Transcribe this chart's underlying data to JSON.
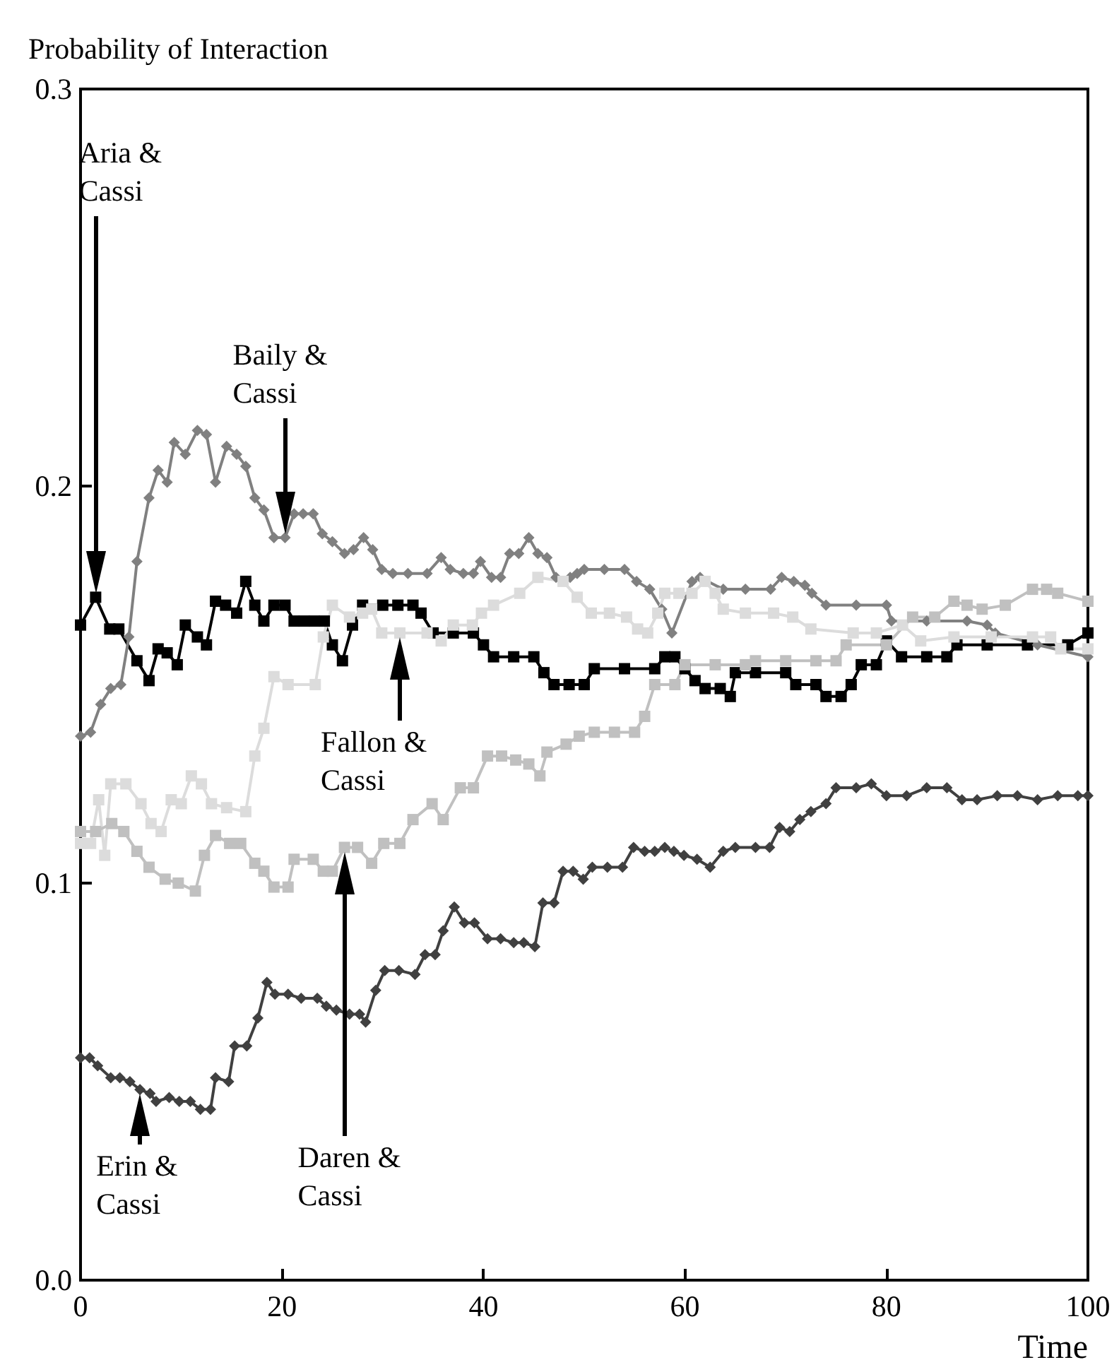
{
  "chart_data": {
    "type": "line",
    "xlabel": "Time",
    "ylabel": "Probability of Interaction",
    "xlim": [
      0,
      100
    ],
    "xticks": [
      0,
      20,
      40,
      60,
      80,
      100
    ],
    "ylim": [
      0,
      0.3
    ],
    "yticks": [
      {
        "value": 0,
        "label": "0.0"
      },
      0.1,
      0.2,
      0.3
    ],
    "grid": false,
    "series": [
      {
        "color": "#000000",
        "marker": "square",
        "x": [
          0,
          1.5,
          2.9,
          3.8,
          5.6,
          6.8,
          7.7,
          8.6,
          9.6,
          10.4,
          11.6,
          12.5,
          13.4,
          14.4,
          15.5,
          16.4,
          17.3,
          18.2,
          19.2,
          20.3,
          21.2,
          22.2,
          23.2,
          24.2,
          25,
          26,
          27,
          28,
          30,
          31.5,
          33,
          33.8,
          35,
          37,
          39,
          40,
          41,
          43,
          45,
          46,
          47,
          48.5,
          50,
          51,
          54,
          57,
          58,
          59,
          60,
          61,
          62,
          63.5,
          64.5,
          65,
          67,
          70,
          71,
          73,
          74,
          75.5,
          76.5,
          77.5,
          79,
          80,
          81.5,
          84,
          86,
          87,
          90,
          94,
          98,
          100
        ],
        "values": [
          0.165,
          0.172,
          0.164,
          0.164,
          0.156,
          0.151,
          0.159,
          0.158,
          0.155,
          0.165,
          0.162,
          0.16,
          0.171,
          0.17,
          0.168,
          0.176,
          0.17,
          0.166,
          0.17,
          0.17,
          0.166,
          0.166,
          0.166,
          0.166,
          0.16,
          0.156,
          0.165,
          0.17,
          0.17,
          0.17,
          0.17,
          0.168,
          0.163,
          0.163,
          0.163,
          0.16,
          0.157,
          0.157,
          0.157,
          0.153,
          0.15,
          0.15,
          0.15,
          0.154,
          0.154,
          0.154,
          0.157,
          0.157,
          0.154,
          0.151,
          0.149,
          0.149,
          0.147,
          0.153,
          0.153,
          0.153,
          0.15,
          0.15,
          0.147,
          0.147,
          0.15,
          0.155,
          0.155,
          0.161,
          0.157,
          0.157,
          0.157,
          0.16,
          0.16,
          0.16,
          0.16,
          0.163
        ]
      },
      {
        "color": "#808080",
        "marker": "diamond",
        "x": [
          0,
          1,
          2,
          3,
          4,
          4.8,
          5.6,
          6.8,
          7.7,
          8.6,
          9.3,
          10.4,
          11.6,
          12.5,
          13.4,
          14.5,
          15.5,
          16.4,
          17.3,
          18.2,
          19.2,
          20.3,
          21.2,
          22.1,
          23.1,
          24,
          25,
          26.2,
          27.1,
          28.1,
          29,
          29.9,
          31,
          32.5,
          34.4,
          35.8,
          36.7,
          38,
          39,
          39.7,
          40.8,
          41.7,
          42.6,
          43.5,
          44.5,
          45.4,
          46.3,
          47.2,
          48.6,
          49.3,
          50,
          52,
          54,
          55.2,
          56.5,
          57.7,
          58.7,
          60.7,
          61.5,
          63.8,
          66,
          68.5,
          69.6,
          70.8,
          71.9,
          72.6,
          74,
          77,
          80,
          80.5,
          84,
          88,
          90,
          90.8,
          95,
          100
        ],
        "values": [
          0.137,
          0.138,
          0.145,
          0.149,
          0.15,
          0.162,
          0.181,
          0.197,
          0.204,
          0.201,
          0.211,
          0.208,
          0.214,
          0.213,
          0.201,
          0.21,
          0.208,
          0.205,
          0.197,
          0.194,
          0.187,
          0.187,
          0.193,
          0.193,
          0.193,
          0.188,
          0.186,
          0.183,
          0.184,
          0.187,
          0.184,
          0.179,
          0.178,
          0.178,
          0.178,
          0.182,
          0.179,
          0.178,
          0.178,
          0.181,
          0.177,
          0.177,
          0.183,
          0.183,
          0.187,
          0.183,
          0.182,
          0.177,
          0.177,
          0.178,
          0.179,
          0.179,
          0.179,
          0.176,
          0.174,
          0.169,
          0.163,
          0.176,
          0.177,
          0.174,
          0.174,
          0.174,
          0.177,
          0.176,
          0.175,
          0.173,
          0.17,
          0.17,
          0.17,
          0.166,
          0.166,
          0.166,
          0.165,
          0.163,
          0.16,
          0.157
        ]
      },
      {
        "color": "#dcdcdc",
        "marker": "square",
        "x": [
          0,
          1,
          1.8,
          2.4,
          3,
          4.5,
          6,
          7,
          8,
          9,
          10,
          11,
          12,
          13,
          14.5,
          16.4,
          17.3,
          18.2,
          19.2,
          20.6,
          23.3,
          24.1,
          25,
          26.7,
          28,
          28.9,
          29.9,
          31.7,
          34.4,
          35.8,
          37,
          38.9,
          39.8,
          41,
          43.6,
          45.4,
          47.9,
          49.3,
          50.7,
          52.5,
          54.2,
          55.3,
          56.3,
          57.3,
          58,
          59.4,
          60.7,
          62,
          63,
          63.8,
          66,
          68.8,
          70.7,
          72.5,
          76.7,
          79,
          81.6,
          83.4,
          86.7,
          90.4,
          94.5,
          96.3,
          97.3,
          100
        ],
        "values": [
          0.11,
          0.11,
          0.121,
          0.107,
          0.125,
          0.125,
          0.12,
          0.115,
          0.113,
          0.121,
          0.12,
          0.127,
          0.125,
          0.12,
          0.119,
          0.118,
          0.132,
          0.139,
          0.152,
          0.15,
          0.15,
          0.162,
          0.17,
          0.167,
          0.168,
          0.169,
          0.163,
          0.163,
          0.163,
          0.161,
          0.165,
          0.165,
          0.168,
          0.17,
          0.173,
          0.177,
          0.176,
          0.172,
          0.168,
          0.168,
          0.167,
          0.164,
          0.163,
          0.168,
          0.173,
          0.173,
          0.173,
          0.176,
          0.173,
          0.169,
          0.168,
          0.168,
          0.167,
          0.164,
          0.163,
          0.163,
          0.165,
          0.161,
          0.162,
          0.162,
          0.162,
          0.162,
          0.159,
          0.159
        ]
      },
      {
        "color": "#c0c0c0",
        "marker": "square",
        "x": [
          0,
          1.5,
          3.1,
          4.3,
          5.6,
          6.8,
          8.4,
          9.7,
          11.4,
          12.3,
          13.4,
          14.8,
          15.9,
          17.3,
          18.2,
          19.2,
          20.6,
          21.2,
          23.1,
          24.1,
          25,
          26.2,
          27.5,
          28.9,
          30.1,
          31.7,
          33,
          34.9,
          36,
          37.7,
          39,
          40.4,
          41.8,
          43.2,
          44.5,
          45.6,
          46.3,
          48.2,
          49.5,
          51,
          53,
          55,
          56,
          57,
          59,
          60,
          63,
          66,
          67,
          70,
          73,
          75,
          76,
          80,
          82.6,
          84.8,
          86.7,
          88,
          89.5,
          91.8,
          94.5,
          95.9,
          97,
          100
        ],
        "values": [
          0.113,
          0.113,
          0.115,
          0.113,
          0.108,
          0.104,
          0.101,
          0.1,
          0.098,
          0.107,
          0.112,
          0.11,
          0.11,
          0.105,
          0.103,
          0.099,
          0.099,
          0.106,
          0.106,
          0.103,
          0.103,
          0.109,
          0.109,
          0.105,
          0.11,
          0.11,
          0.116,
          0.12,
          0.116,
          0.124,
          0.124,
          0.132,
          0.132,
          0.131,
          0.13,
          0.127,
          0.133,
          0.135,
          0.137,
          0.138,
          0.138,
          0.138,
          0.142,
          0.15,
          0.15,
          0.155,
          0.155,
          0.155,
          0.156,
          0.156,
          0.156,
          0.156,
          0.16,
          0.16,
          0.167,
          0.167,
          0.171,
          0.17,
          0.169,
          0.17,
          0.174,
          0.174,
          0.173,
          0.171
        ]
      },
      {
        "color": "#404040",
        "marker": "diamond",
        "x": [
          0,
          0.9,
          1.7,
          3,
          3.9,
          4.9,
          5.9,
          6.9,
          7.5,
          8.8,
          9.8,
          10.9,
          11.9,
          12.9,
          13.4,
          14.7,
          15.3,
          16.5,
          17.6,
          18.5,
          19.3,
          20.6,
          21.9,
          23.5,
          24.4,
          25.4,
          26.7,
          27.7,
          28.3,
          29.3,
          30.2,
          31.6,
          33.2,
          34.2,
          35.2,
          36,
          37.1,
          38.1,
          39.1,
          40.4,
          41.7,
          43,
          44,
          45.1,
          45.9,
          47,
          47.9,
          48.9,
          49.9,
          50.8,
          52.3,
          53.8,
          54.9,
          56,
          57,
          58,
          58.9,
          59.9,
          61.2,
          62.5,
          63.8,
          65,
          67,
          68.4,
          69.4,
          70.4,
          71.4,
          72.5,
          74,
          75,
          77,
          78.5,
          80,
          82,
          84,
          86,
          87.5,
          89,
          91,
          93,
          95,
          97,
          99,
          100
        ],
        "values": [
          0.056,
          0.056,
          0.054,
          0.051,
          0.051,
          0.05,
          0.048,
          0.047,
          0.045,
          0.046,
          0.045,
          0.045,
          0.043,
          0.043,
          0.051,
          0.05,
          0.059,
          0.059,
          0.066,
          0.075,
          0.072,
          0.072,
          0.071,
          0.071,
          0.069,
          0.068,
          0.067,
          0.067,
          0.065,
          0.073,
          0.078,
          0.078,
          0.077,
          0.082,
          0.082,
          0.088,
          0.094,
          0.09,
          0.09,
          0.086,
          0.086,
          0.085,
          0.085,
          0.084,
          0.095,
          0.095,
          0.103,
          0.103,
          0.101,
          0.104,
          0.104,
          0.104,
          0.109,
          0.108,
          0.108,
          0.109,
          0.108,
          0.107,
          0.106,
          0.104,
          0.108,
          0.109,
          0.109,
          0.109,
          0.114,
          0.113,
          0.116,
          0.118,
          0.12,
          0.124,
          0.124,
          0.125,
          0.122,
          0.122,
          0.124,
          0.124,
          0.121,
          0.121,
          0.122,
          0.122,
          0.121,
          0.122,
          0.122,
          0.122
        ]
      }
    ],
    "annotations": [
      "Aria & Cassi",
      "Baily & Cassi",
      "Fallon & Cassi",
      "Daren & Cassi",
      "Erin & Cassi"
    ]
  }
}
